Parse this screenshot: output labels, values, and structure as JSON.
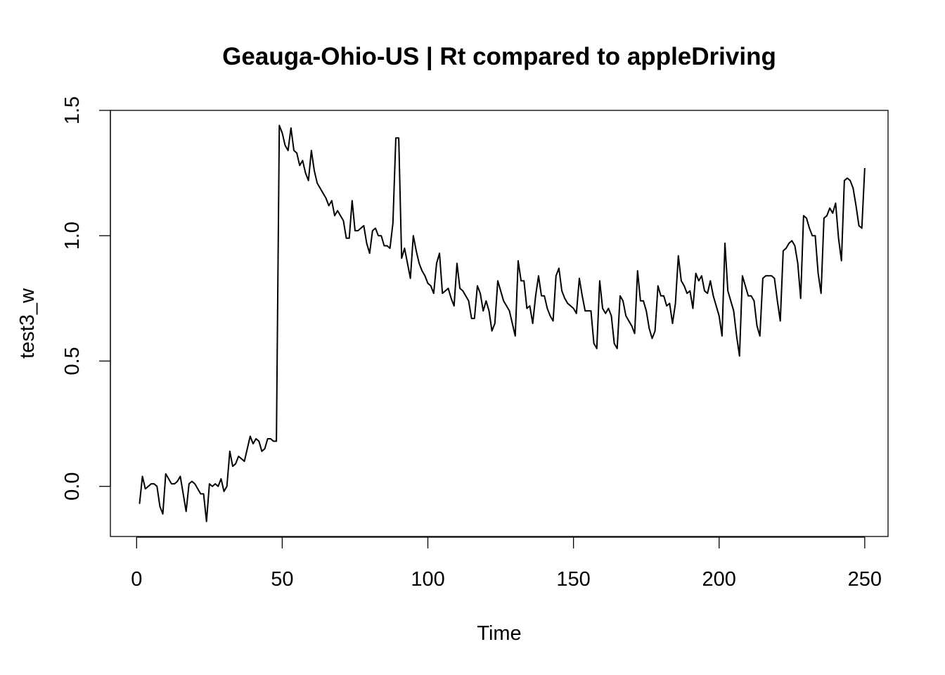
{
  "chart_data": {
    "type": "line",
    "title": "Geauga-Ohio-US | Rt compared to appleDriving",
    "xlabel": "Time",
    "ylabel": "test3_w",
    "xlim": [
      -9,
      258
    ],
    "ylim": [
      -0.2,
      1.5
    ],
    "x_ticks": [
      0,
      50,
      100,
      150,
      200,
      250
    ],
    "y_ticks": [
      0.0,
      0.5,
      1.0,
      1.5
    ],
    "x_tick_labels": [
      "0",
      "50",
      "100",
      "150",
      "200",
      "250"
    ],
    "y_tick_labels": [
      "0.0",
      "0.5",
      "1.0",
      "1.5"
    ],
    "line_color": "#000000",
    "series": [
      {
        "x_start": 1,
        "values": [
          -0.07,
          0.04,
          -0.01,
          0.0,
          0.01,
          0.01,
          0.0,
          -0.08,
          -0.11,
          0.05,
          0.03,
          0.01,
          0.01,
          0.02,
          0.04,
          -0.03,
          -0.1,
          0.01,
          0.02,
          0.01,
          -0.01,
          -0.03,
          -0.03,
          -0.14,
          0.01,
          0.0,
          0.01,
          0.0,
          0.03,
          -0.02,
          0.0,
          0.14,
          0.08,
          0.09,
          0.12,
          0.11,
          0.1,
          0.15,
          0.2,
          0.17,
          0.19,
          0.18,
          0.14,
          0.15,
          0.19,
          0.19,
          0.18,
          0.18,
          1.44,
          1.41,
          1.36,
          1.34,
          1.43,
          1.34,
          1.33,
          1.28,
          1.3,
          1.25,
          1.22,
          1.34,
          1.26,
          1.21,
          1.19,
          1.17,
          1.15,
          1.12,
          1.14,
          1.08,
          1.1,
          1.08,
          1.06,
          0.99,
          0.99,
          1.14,
          1.02,
          1.02,
          1.03,
          1.04,
          0.97,
          0.93,
          1.02,
          1.03,
          1.0,
          1.0,
          0.96,
          0.96,
          0.95,
          1.05,
          1.39,
          1.39,
          0.91,
          0.95,
          0.89,
          0.83,
          1.0,
          0.94,
          0.89,
          0.86,
          0.84,
          0.81,
          0.8,
          0.77,
          0.89,
          0.93,
          0.77,
          0.78,
          0.79,
          0.75,
          0.72,
          0.89,
          0.79,
          0.78,
          0.76,
          0.74,
          0.67,
          0.67,
          0.8,
          0.77,
          0.7,
          0.74,
          0.7,
          0.62,
          0.65,
          0.82,
          0.78,
          0.74,
          0.72,
          0.7,
          0.65,
          0.6,
          0.9,
          0.82,
          0.82,
          0.71,
          0.72,
          0.65,
          0.76,
          0.84,
          0.76,
          0.76,
          0.71,
          0.68,
          0.66,
          0.84,
          0.87,
          0.78,
          0.75,
          0.73,
          0.72,
          0.71,
          0.69,
          0.83,
          0.76,
          0.7,
          0.7,
          0.7,
          0.57,
          0.55,
          0.82,
          0.71,
          0.69,
          0.71,
          0.68,
          0.57,
          0.55,
          0.76,
          0.74,
          0.68,
          0.66,
          0.64,
          0.61,
          0.86,
          0.74,
          0.74,
          0.7,
          0.63,
          0.59,
          0.62,
          0.8,
          0.76,
          0.76,
          0.72,
          0.73,
          0.65,
          0.73,
          0.92,
          0.82,
          0.8,
          0.77,
          0.78,
          0.71,
          0.85,
          0.82,
          0.84,
          0.78,
          0.77,
          0.82,
          0.76,
          0.72,
          0.68,
          0.6,
          0.97,
          0.78,
          0.74,
          0.7,
          0.6,
          0.52,
          0.84,
          0.8,
          0.76,
          0.76,
          0.74,
          0.64,
          0.6,
          0.83,
          0.84,
          0.84,
          0.84,
          0.83,
          0.74,
          0.66,
          0.94,
          0.95,
          0.97,
          0.98,
          0.96,
          0.89,
          0.75,
          1.08,
          1.07,
          1.03,
          1.0,
          1.0,
          0.85,
          0.77,
          1.07,
          1.08,
          1.11,
          1.09,
          1.13,
          0.99,
          0.9,
          1.22,
          1.23,
          1.22,
          1.19,
          1.12,
          1.04,
          1.03,
          1.27
        ]
      }
    ]
  }
}
